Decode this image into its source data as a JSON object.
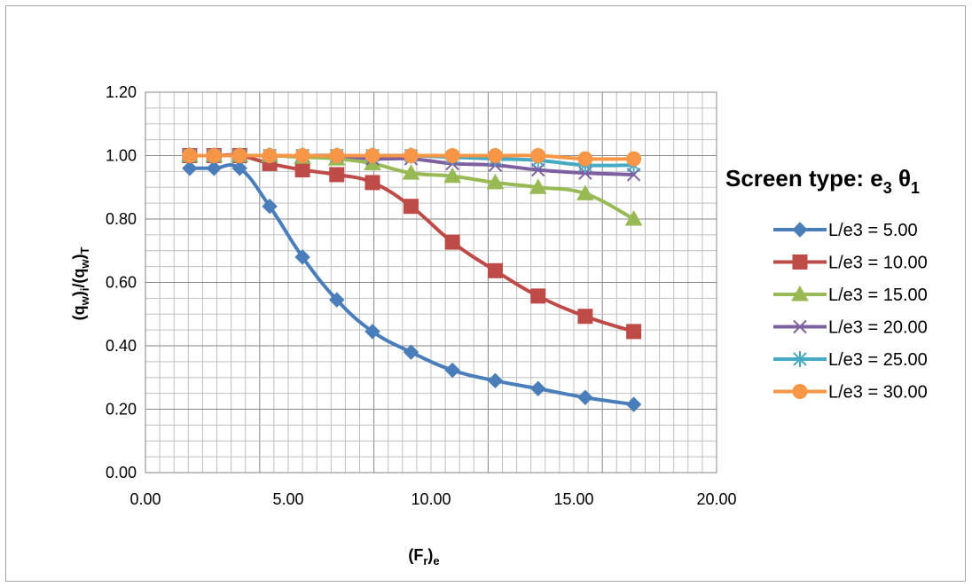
{
  "chart_data": {
    "type": "line",
    "xlabel": {
      "main": "(F",
      "sub1": "r",
      "mid": ")",
      "sub2": "e"
    },
    "ylabel": {
      "p1": "(q",
      "s1": "w",
      "p2": ")",
      "s2": "i",
      "p3": "/(q",
      "s3": "w",
      "p4": ")",
      "s4": "T"
    },
    "legend_title": {
      "main": "Screen type: e",
      "sub1": "3",
      "mid": " θ",
      "sub2": "1"
    },
    "xlim": [
      0,
      20
    ],
    "ylim": [
      0,
      1.2
    ],
    "x_ticks": [
      "0.00",
      "5.00",
      "10.00",
      "15.00",
      "20.00"
    ],
    "y_ticks": [
      "0.00",
      "0.20",
      "0.40",
      "0.60",
      "0.80",
      "1.00",
      "1.20"
    ],
    "grid": true,
    "legend_position": "right",
    "x": [
      1.55,
      2.4,
      3.3,
      4.35,
      5.5,
      6.7,
      7.95,
      9.3,
      10.75,
      12.25,
      13.75,
      15.4,
      17.1
    ],
    "series": [
      {
        "name": "L/e3 = 5.00",
        "color": "#4a7ebb",
        "marker": "diamond",
        "values": [
          0.96,
          0.96,
          0.96,
          0.84,
          0.68,
          0.545,
          0.445,
          0.38,
          0.323,
          0.29,
          0.265,
          0.237,
          0.215
        ]
      },
      {
        "name": "L/e3 = 10.00",
        "color": "#be4b48",
        "marker": "square",
        "values": [
          1.0,
          1.0,
          1.0,
          0.975,
          0.955,
          0.94,
          0.915,
          0.84,
          0.727,
          0.637,
          0.557,
          0.493,
          0.445
        ]
      },
      {
        "name": "L/e3 = 15.00",
        "color": "#98b954",
        "marker": "triangle",
        "values": [
          1.0,
          1.0,
          1.0,
          1.0,
          0.995,
          0.99,
          0.975,
          0.945,
          0.935,
          0.915,
          0.9,
          0.88,
          0.8
        ]
      },
      {
        "name": "L/e3 = 20.00",
        "color": "#7d60a0",
        "marker": "x",
        "values": [
          1.0,
          1.0,
          1.0,
          1.0,
          1.0,
          1.0,
          0.99,
          0.99,
          0.975,
          0.97,
          0.955,
          0.945,
          0.94
        ]
      },
      {
        "name": "L/e3 = 25.00",
        "color": "#46aac5",
        "marker": "star",
        "values": [
          1.0,
          1.0,
          1.0,
          1.0,
          1.0,
          1.0,
          1.0,
          1.0,
          0.995,
          0.99,
          0.985,
          0.97,
          0.97
        ]
      },
      {
        "name": "L/e3 = 30.00",
        "color": "#f79646",
        "marker": "circle",
        "values": [
          1.0,
          1.0,
          1.0,
          1.0,
          1.0,
          1.0,
          1.0,
          1.0,
          1.0,
          1.0,
          1.0,
          0.99,
          0.99
        ]
      }
    ]
  }
}
